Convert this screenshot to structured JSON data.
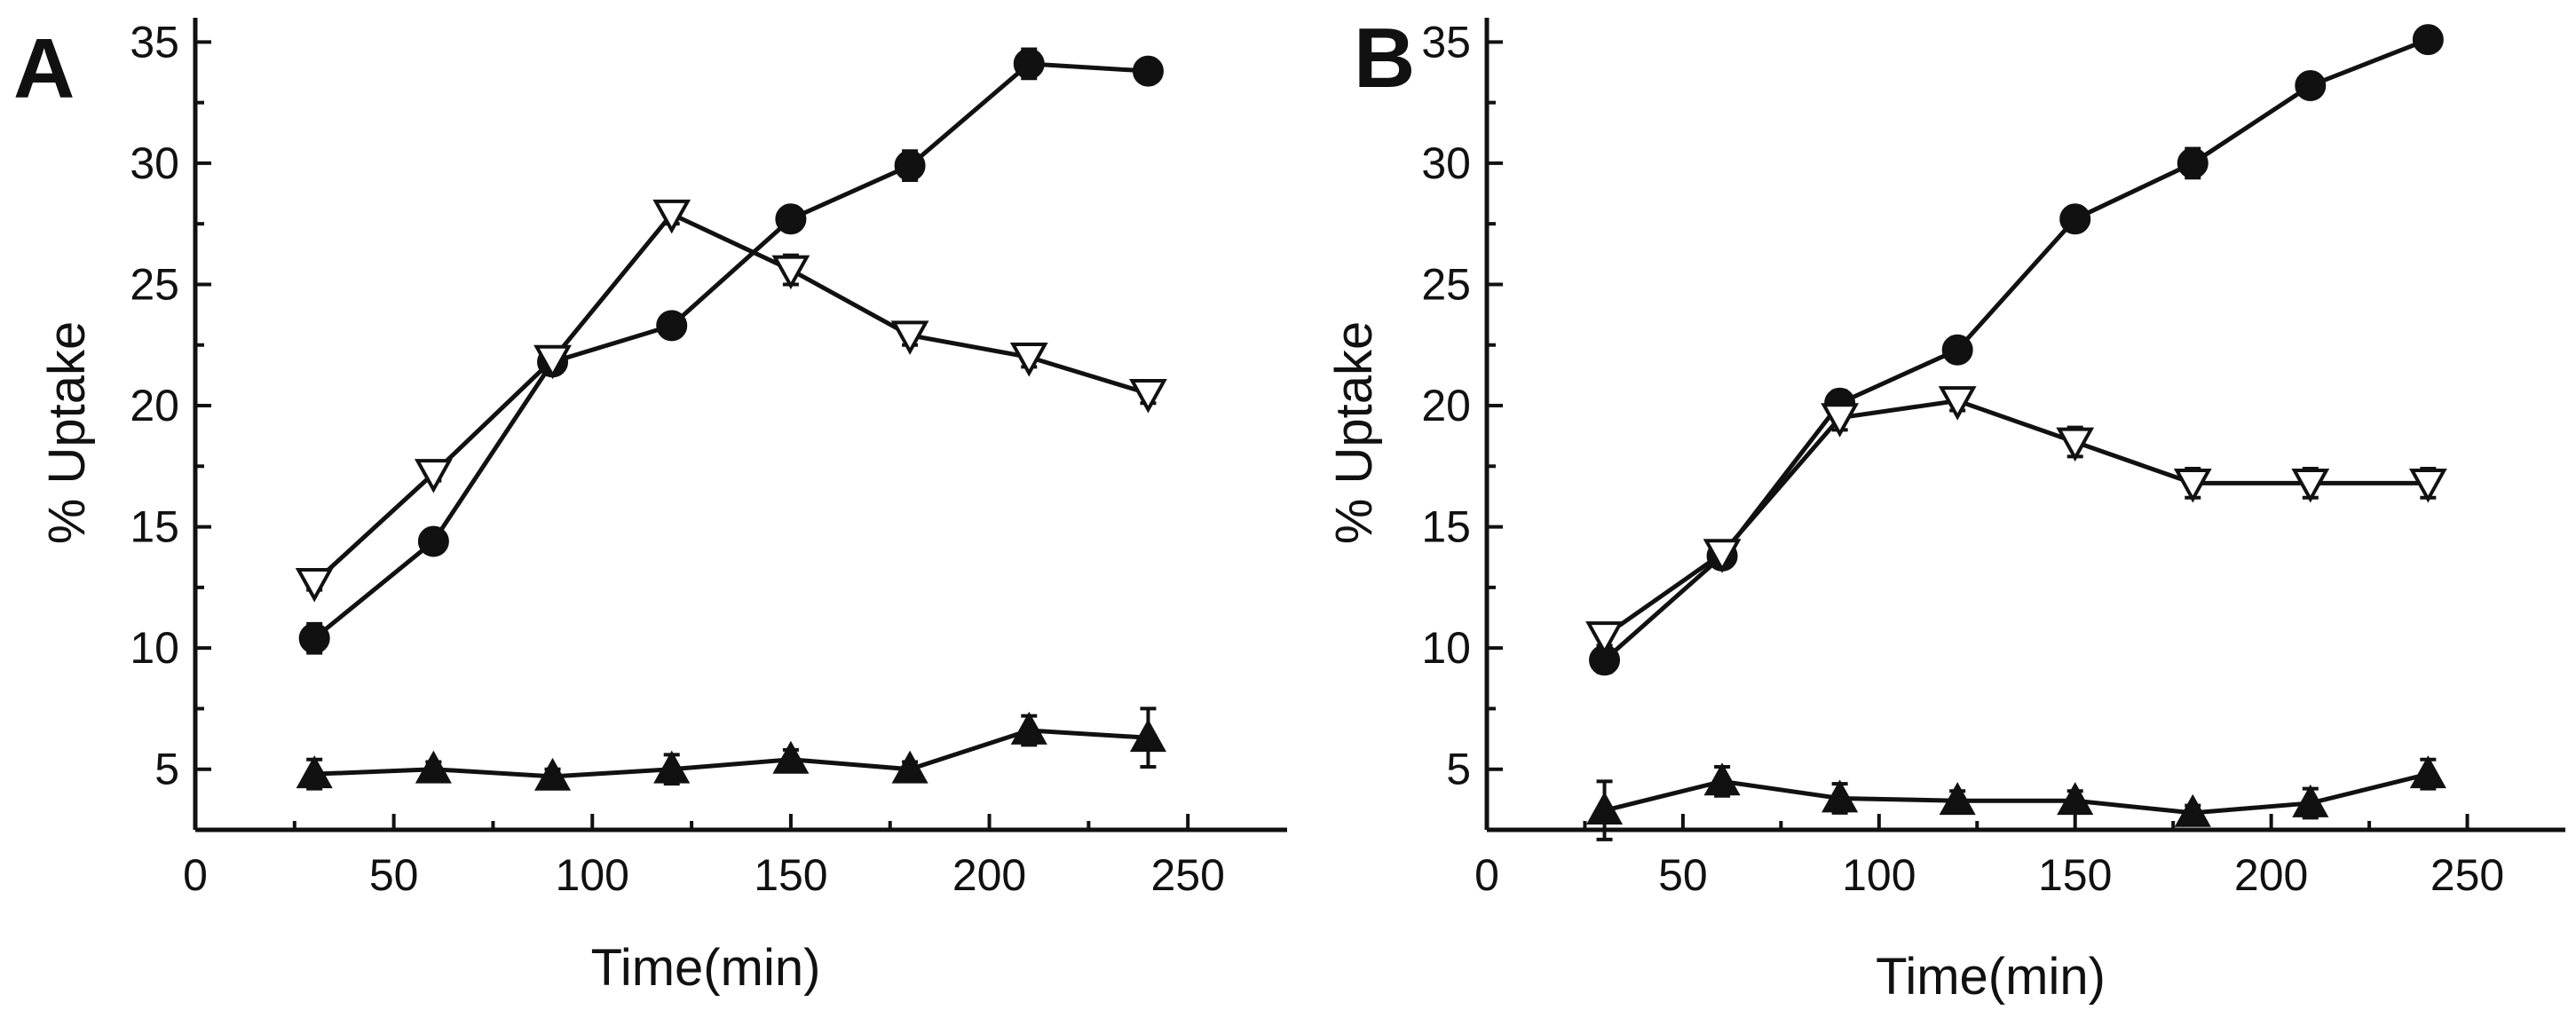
{
  "chart_data": [
    {
      "type": "line",
      "panel_label": "A",
      "xlabel": "Time(min)",
      "ylabel": "% Uptake",
      "xlim": [
        0,
        275
      ],
      "ylim": [
        2.5,
        36
      ],
      "xticks": [
        0,
        50,
        100,
        150,
        200,
        250
      ],
      "yticks": [
        5,
        10,
        15,
        20,
        25,
        30,
        35
      ],
      "x": [
        30,
        60,
        90,
        120,
        150,
        180,
        210,
        240
      ],
      "series": [
        {
          "name": "filled-circle",
          "marker": "circle-filled",
          "values": [
            10.4,
            14.4,
            21.8,
            23.3,
            27.7,
            29.9,
            34.1,
            33.8
          ],
          "errors": [
            0.6,
            0.4,
            0.4,
            0.3,
            0.3,
            0.6,
            0.6,
            0.3
          ]
        },
        {
          "name": "open-down-triangle",
          "marker": "triangle-down-open",
          "values": [
            12.7,
            17.2,
            21.9,
            27.9,
            25.6,
            22.9,
            22.0,
            20.5
          ],
          "errors": [
            0.3,
            0.3,
            0.4,
            0.4,
            0.6,
            0.4,
            0.4,
            0.4
          ]
        },
        {
          "name": "filled-up-triangle",
          "marker": "triangle-up-filled",
          "values": [
            4.8,
            5.0,
            4.7,
            5.0,
            5.4,
            5.0,
            6.6,
            6.3
          ],
          "errors": [
            0.6,
            0.3,
            0.3,
            0.6,
            0.4,
            0.3,
            0.6,
            1.2
          ]
        }
      ]
    },
    {
      "type": "line",
      "panel_label": "B",
      "xlabel": "Time(min)",
      "ylabel": "% Uptake",
      "xlim": [
        0,
        275
      ],
      "ylim": [
        2.5,
        36
      ],
      "xticks": [
        0,
        50,
        100,
        150,
        200,
        250
      ],
      "yticks": [
        5,
        10,
        15,
        20,
        25,
        30,
        35
      ],
      "x": [
        30,
        60,
        90,
        120,
        150,
        180,
        210,
        240
      ],
      "series": [
        {
          "name": "filled-circle",
          "marker": "circle-filled",
          "values": [
            9.5,
            13.8,
            20.1,
            22.3,
            27.7,
            30.0,
            33.2,
            35.1
          ],
          "errors": [
            0.5,
            0.4,
            0.5,
            0.4,
            0.3,
            0.6,
            0.4,
            0.4
          ]
        },
        {
          "name": "open-down-triangle",
          "marker": "triangle-down-open",
          "values": [
            10.5,
            13.9,
            19.5,
            20.2,
            18.5,
            16.8,
            16.8,
            16.8
          ],
          "errors": [
            0.4,
            0.4,
            0.5,
            0.4,
            0.6,
            0.6,
            0.6,
            0.6
          ]
        },
        {
          "name": "filled-up-triangle",
          "marker": "triangle-up-filled",
          "values": [
            3.3,
            4.5,
            3.8,
            3.7,
            3.7,
            3.2,
            3.6,
            4.8
          ],
          "errors": [
            1.2,
            0.6,
            0.6,
            0.4,
            0.4,
            0.3,
            0.6,
            0.6
          ]
        }
      ]
    }
  ]
}
